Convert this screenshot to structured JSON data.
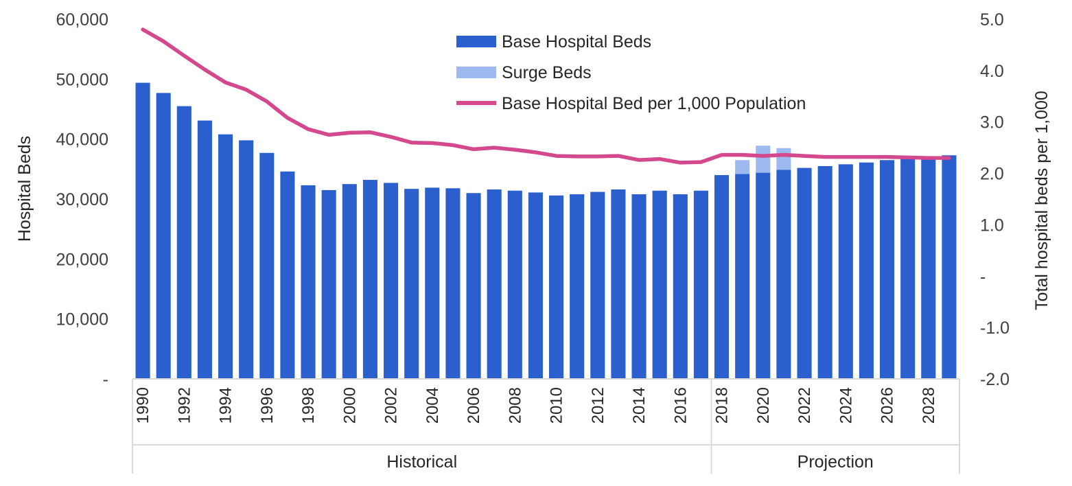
{
  "chart_data": {
    "type": "bar",
    "title": "",
    "ylabel": "Hospital Beds",
    "y2label": "Total hospital beds per 1,000",
    "ylim": [
      0,
      60000
    ],
    "y2lim": [
      -2.0,
      5.0
    ],
    "y_tick_labels": [
      "-",
      "10,000",
      "20,000",
      "30,000",
      "40,000",
      "50,000",
      "60,000"
    ],
    "y2_tick_labels": [
      "-2.0",
      "-1.0",
      "-",
      "1.0",
      "2.0",
      "3.0",
      "4.0",
      "5.0"
    ],
    "categories": [
      "1990",
      "1991",
      "1992",
      "1993",
      "1994",
      "1995",
      "1996",
      "1997",
      "1998",
      "1999",
      "2000",
      "2001",
      "2002",
      "2003",
      "2004",
      "2005",
      "2006",
      "2007",
      "2008",
      "2009",
      "2010",
      "2011",
      "2012",
      "2013",
      "2014",
      "2015",
      "2016",
      "2017",
      "2018",
      "2019",
      "2020",
      "2021",
      "2022",
      "2023",
      "2024",
      "2025",
      "2026",
      "2027",
      "2028",
      "2029"
    ],
    "x_tick_labels": [
      "1990",
      "",
      "1992",
      "",
      "1994",
      "",
      "1996",
      "",
      "1998",
      "",
      "2000",
      "",
      "2002",
      "",
      "2004",
      "",
      "2006",
      "",
      "2008",
      "",
      "2010",
      "",
      "2012",
      "",
      "2014",
      "",
      "2016",
      "",
      "2018",
      "",
      "2020",
      "",
      "2022",
      "",
      "2024",
      "",
      "2026",
      "",
      "2028",
      ""
    ],
    "category_groups": [
      {
        "label": "Historical",
        "start": 0,
        "end": 27
      },
      {
        "label": "Projection",
        "start": 28,
        "end": 39
      }
    ],
    "series": [
      {
        "name": "Base Hospital Beds",
        "type": "bar",
        "axis": "left",
        "color": "#2b5fce",
        "values": [
          49400,
          47700,
          45500,
          43100,
          40800,
          39800,
          37700,
          34600,
          32300,
          31500,
          32500,
          33200,
          32700,
          31700,
          31900,
          31800,
          31000,
          31600,
          31400,
          31100,
          30600,
          30800,
          31200,
          31600,
          30800,
          31400,
          30800,
          31400,
          34000,
          34200,
          34400,
          34900,
          35200,
          35500,
          35800,
          36100,
          36500,
          36700,
          36900,
          37300
        ]
      },
      {
        "name": "Surge Beds",
        "type": "bar",
        "stacked": true,
        "axis": "left",
        "color": "#9dbaf0",
        "values": [
          0,
          0,
          0,
          0,
          0,
          0,
          0,
          0,
          0,
          0,
          0,
          0,
          0,
          0,
          0,
          0,
          0,
          0,
          0,
          0,
          0,
          0,
          0,
          0,
          0,
          0,
          0,
          0,
          0,
          2300,
          4500,
          3600,
          0,
          0,
          0,
          0,
          0,
          0,
          0,
          0
        ]
      },
      {
        "name": "Base Hospital Bed per 1,000 Population",
        "type": "line",
        "axis": "right",
        "color": "#d4488e",
        "values": [
          4.8,
          4.57,
          4.29,
          4.02,
          3.77,
          3.63,
          3.4,
          3.08,
          2.86,
          2.75,
          2.79,
          2.8,
          2.71,
          2.6,
          2.59,
          2.55,
          2.47,
          2.5,
          2.46,
          2.41,
          2.34,
          2.33,
          2.33,
          2.34,
          2.26,
          2.28,
          2.21,
          2.22,
          2.36,
          2.36,
          2.34,
          2.36,
          2.34,
          2.32,
          2.32,
          2.32,
          2.32,
          2.31,
          2.3,
          2.3
        ]
      }
    ],
    "legend_position": "top-center",
    "grid": false
  }
}
